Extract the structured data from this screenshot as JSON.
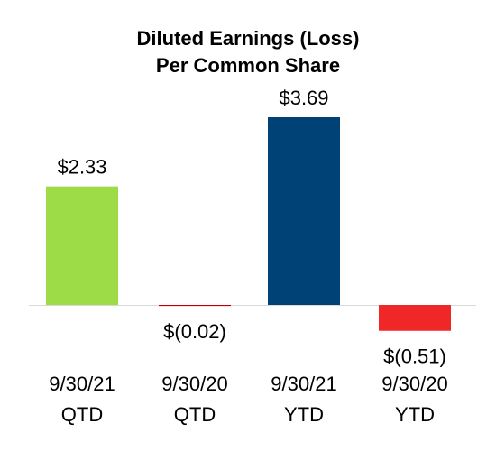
{
  "chart_data": {
    "type": "bar",
    "title_lines": [
      "Diluted Earnings (Loss)",
      "Per Common Share"
    ],
    "categories": [
      [
        "9/30/21",
        "QTD"
      ],
      [
        "9/30/20",
        "QTD"
      ],
      [
        "9/30/21",
        "YTD"
      ],
      [
        "9/30/20",
        "YTD"
      ]
    ],
    "values": [
      2.33,
      -0.02,
      3.69,
      -0.51
    ],
    "data_labels": [
      "$2.33",
      "$(0.02)",
      "$3.69",
      "$(0.51)"
    ],
    "colors": [
      "#9ddb47",
      "#c00000",
      "#004276",
      "#f02727"
    ],
    "baseline_color": "#d9d9d9",
    "grid": false,
    "legend": "none"
  }
}
